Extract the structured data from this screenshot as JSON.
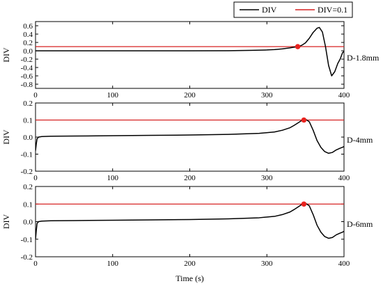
{
  "chart_data": [
    {
      "type": "line",
      "annotation": "D-1.8mm",
      "ylabel": "DIV",
      "xlabel": "",
      "xlim": [
        0,
        400
      ],
      "ylim": [
        -0.9,
        0.7
      ],
      "x_ticks": [
        0,
        100,
        200,
        300,
        400
      ],
      "y_ticks": [
        -0.8,
        -0.6,
        -0.4,
        -0.2,
        0.0,
        0.2,
        0.4,
        0.6
      ],
      "y_tick_labels": [
        "-0.8",
        "-0.6",
        "-0.4",
        "-0.2",
        "0.0",
        "0.2",
        "0.4",
        "0.6"
      ],
      "series": [
        {
          "name": "DIV",
          "color": "#000000",
          "x": [
            0,
            50,
            100,
            150,
            200,
            250,
            280,
            300,
            310,
            320,
            330,
            335,
            340,
            345,
            350,
            355,
            360,
            365,
            368,
            372,
            376,
            380,
            384,
            388,
            392,
            395,
            398,
            400
          ],
          "y": [
            0.0,
            0.0,
            0.0,
            0.0,
            0.0,
            0.002,
            0.01,
            0.02,
            0.03,
            0.045,
            0.07,
            0.085,
            0.1,
            0.13,
            0.19,
            0.3,
            0.44,
            0.54,
            0.56,
            0.45,
            0.1,
            -0.35,
            -0.6,
            -0.5,
            -0.3,
            -0.2,
            -0.05,
            -0.01
          ]
        },
        {
          "name": "DIV=0.1",
          "color": "#d62020",
          "y_const": 0.1
        }
      ],
      "marker": {
        "x": 340,
        "y": 0.1,
        "color": "#e8231f"
      }
    },
    {
      "type": "line",
      "annotation": "D-4mm",
      "ylabel": "DIV",
      "xlabel": "",
      "xlim": [
        0,
        400
      ],
      "ylim": [
        -0.2,
        0.2
      ],
      "x_ticks": [
        0,
        100,
        200,
        300,
        400
      ],
      "y_ticks": [
        -0.2,
        -0.1,
        0.0,
        0.1,
        0.2
      ],
      "y_tick_labels": [
        "-0.2",
        "-0.1",
        "0.0",
        "0.1",
        "0.2"
      ],
      "series": [
        {
          "name": "DIV",
          "color": "#000000",
          "x": [
            0,
            1,
            2,
            4,
            8,
            20,
            50,
            100,
            150,
            200,
            250,
            290,
            310,
            320,
            330,
            335,
            340,
            345,
            348,
            350,
            355,
            360,
            365,
            370,
            375,
            380,
            385,
            390,
            395,
            398,
            400
          ],
          "y": [
            -0.08,
            -0.04,
            -0.01,
            0.0,
            0.003,
            0.005,
            0.006,
            0.008,
            0.01,
            0.012,
            0.016,
            0.022,
            0.03,
            0.04,
            0.055,
            0.068,
            0.082,
            0.097,
            0.1,
            0.105,
            0.09,
            0.04,
            -0.02,
            -0.06,
            -0.085,
            -0.095,
            -0.09,
            -0.075,
            -0.065,
            -0.06,
            -0.055
          ]
        },
        {
          "name": "DIV=0.1",
          "color": "#d62020",
          "y_const": 0.1
        }
      ],
      "marker": {
        "x": 348,
        "y": 0.1,
        "color": "#e8231f"
      }
    },
    {
      "type": "line",
      "annotation": "D-6mm",
      "ylabel": "DIV",
      "xlabel": "Time (s)",
      "xlim": [
        0,
        400
      ],
      "ylim": [
        -0.2,
        0.2
      ],
      "x_ticks": [
        0,
        100,
        200,
        300,
        400
      ],
      "y_ticks": [
        -0.2,
        -0.1,
        0.0,
        0.1,
        0.2
      ],
      "y_tick_labels": [
        "-0.2",
        "-0.1",
        "0.0",
        "0.1",
        "0.2"
      ],
      "series": [
        {
          "name": "DIV",
          "color": "#000000",
          "x": [
            0,
            1,
            2,
            4,
            8,
            20,
            50,
            100,
            150,
            200,
            250,
            290,
            310,
            320,
            330,
            335,
            340,
            345,
            348,
            350,
            355,
            360,
            365,
            370,
            375,
            380,
            385,
            390,
            395,
            398,
            400
          ],
          "y": [
            -0.1,
            -0.05,
            -0.01,
            0.0,
            0.003,
            0.005,
            0.006,
            0.008,
            0.01,
            0.012,
            0.016,
            0.022,
            0.03,
            0.04,
            0.055,
            0.068,
            0.082,
            0.097,
            0.1,
            0.105,
            0.09,
            0.04,
            -0.02,
            -0.06,
            -0.085,
            -0.095,
            -0.09,
            -0.075,
            -0.065,
            -0.06,
            -0.055
          ]
        },
        {
          "name": "DIV=0.1",
          "color": "#d62020",
          "y_const": 0.1
        }
      ],
      "marker": {
        "x": 348,
        "y": 0.1,
        "color": "#e8231f"
      }
    }
  ],
  "legend": {
    "placement": "top-right",
    "entries": [
      {
        "label": "DIV",
        "color": "#000000"
      },
      {
        "label": "DIV=0.1",
        "color": "#d62020"
      }
    ]
  }
}
